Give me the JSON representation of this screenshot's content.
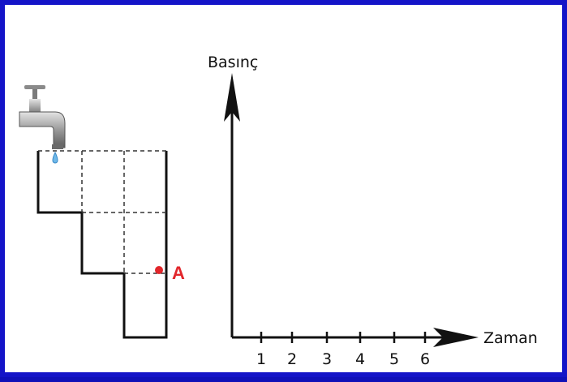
{
  "axes": {
    "y_label": "Basınç",
    "x_label": "Zaman",
    "ticks": [
      "1",
      "2",
      "3",
      "4",
      "5",
      "6"
    ]
  },
  "point": {
    "label": "A",
    "color": "#e2262b"
  },
  "icons": [
    "faucet-icon",
    "water-drop-icon"
  ],
  "colors": {
    "border": "#1414c8",
    "lines": "#111111",
    "point": "#e2262b"
  }
}
